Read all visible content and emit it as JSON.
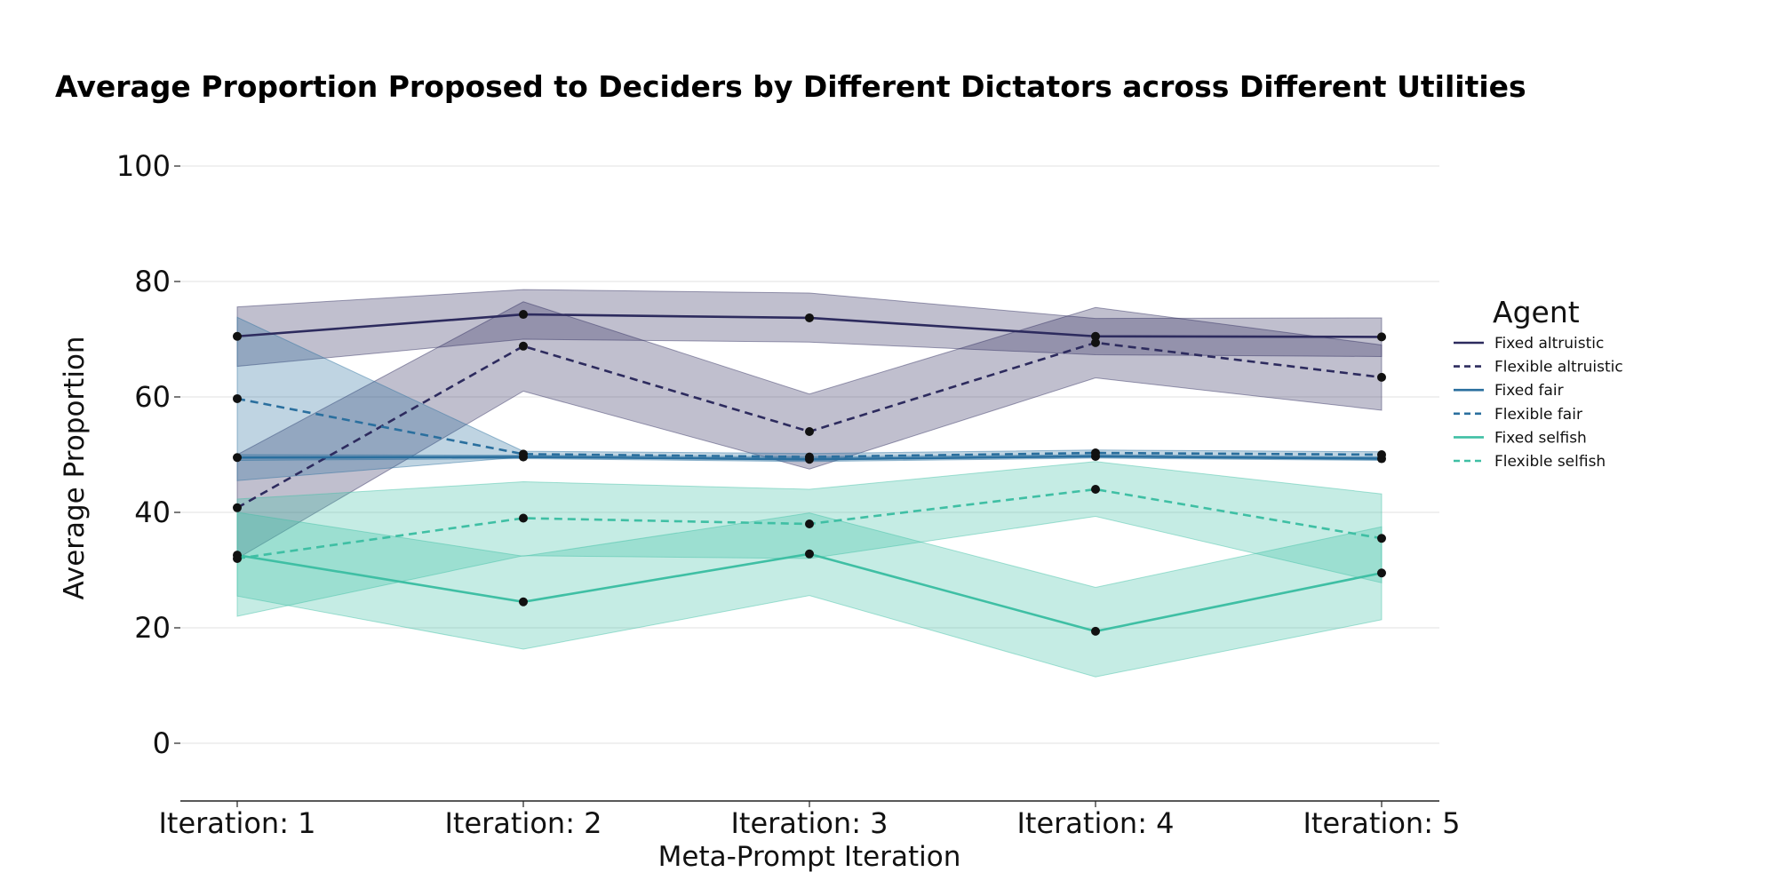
{
  "chart_data": {
    "type": "line",
    "title": "Average Proportion Proposed to Deciders by Different Dictators across Different Utilities",
    "xlabel": "Meta-Prompt Iteration",
    "ylabel": "Average Proportion",
    "categories": [
      "Iteration: 1",
      "Iteration: 2",
      "Iteration: 3",
      "Iteration: 4",
      "Iteration: 5"
    ],
    "ylim": [
      -10,
      100
    ],
    "yticks": [
      0,
      20,
      40,
      60,
      80,
      100
    ],
    "grid": "horizontal",
    "legend": {
      "title": "Agent",
      "placement": "right"
    },
    "series": [
      {
        "name": "Fixed altruistic",
        "style": "solid",
        "color": "#2d2b5e",
        "values": [
          70.5,
          74.3,
          73.7,
          70.5,
          70.4
        ],
        "lower": [
          65.3,
          70.0,
          69.5,
          67.3,
          67.0
        ],
        "upper": [
          75.6,
          78.6,
          78.0,
          73.6,
          73.7
        ]
      },
      {
        "name": "Flexible altruistic",
        "style": "dashed",
        "color": "#2d2b5e",
        "values": [
          40.8,
          68.8,
          54.0,
          69.4,
          63.4
        ],
        "lower": [
          32.0,
          61.0,
          47.5,
          63.3,
          57.7
        ],
        "upper": [
          50.0,
          76.5,
          60.5,
          75.5,
          69.0
        ]
      },
      {
        "name": "Fixed fair",
        "style": "solid",
        "color": "#2a6f9e",
        "values": [
          49.5,
          49.6,
          49.2,
          49.7,
          49.3
        ],
        "lower": [
          49.0,
          49.3,
          48.8,
          49.4,
          49.0
        ],
        "upper": [
          50.0,
          49.9,
          49.6,
          50.0,
          49.6
        ]
      },
      {
        "name": "Flexible fair",
        "style": "dashed",
        "color": "#2a6f9e",
        "values": [
          59.7,
          50.1,
          49.6,
          50.3,
          50.0
        ],
        "lower": [
          45.5,
          49.6,
          49.0,
          49.8,
          49.5
        ],
        "upper": [
          73.8,
          50.6,
          50.2,
          50.8,
          50.5
        ]
      },
      {
        "name": "Fixed selfish",
        "style": "solid",
        "color": "#3fbfa4",
        "values": [
          32.6,
          24.5,
          32.8,
          19.4,
          29.5
        ],
        "lower": [
          25.5,
          16.3,
          25.6,
          11.5,
          21.4
        ],
        "upper": [
          40.0,
          32.4,
          39.9,
          27.0,
          37.5
        ]
      },
      {
        "name": "Flexible selfish",
        "style": "dashed",
        "color": "#3fbfa4",
        "values": [
          32.0,
          39.0,
          38.0,
          44.0,
          35.5
        ],
        "lower": [
          22.0,
          32.5,
          32.0,
          39.3,
          27.8
        ],
        "upper": [
          42.3,
          45.3,
          44.0,
          48.8,
          43.2
        ]
      }
    ]
  }
}
